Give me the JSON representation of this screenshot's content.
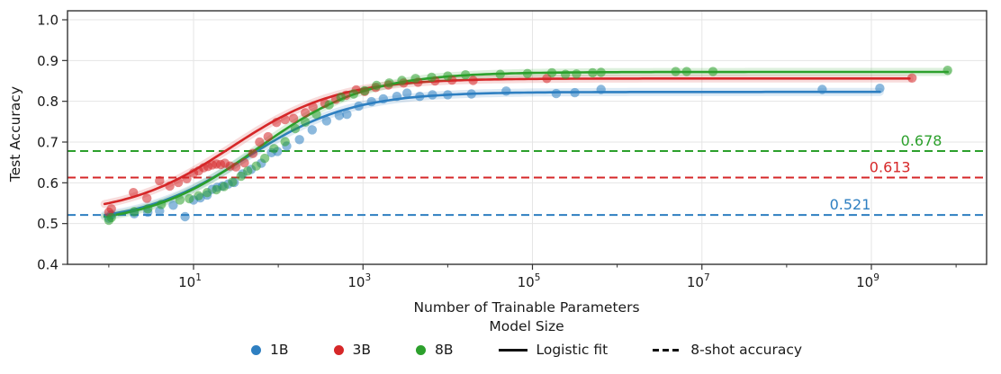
{
  "figure": {
    "xlabel": "Number of Trainable Parameters",
    "ylabel": "Test Accuracy"
  },
  "legend": {
    "title": "Model Size",
    "items": [
      {
        "label": "1B",
        "marker": "dot",
        "color": "#2e7fc1"
      },
      {
        "label": "3B",
        "marker": "dot",
        "color": "#d62728"
      },
      {
        "label": "8B",
        "marker": "dot",
        "color": "#2ca02c"
      },
      {
        "label": "Logistic fit",
        "marker": "solid-line",
        "color": "#111111"
      },
      {
        "label": "8-shot accuracy",
        "marker": "dashed-line",
        "color": "#111111"
      }
    ]
  },
  "chart_data": {
    "type": "scatter",
    "title": "",
    "xlabel": "Number of Trainable Parameters",
    "ylabel": "Test Accuracy",
    "x_scale": "log10",
    "xlim_log10": [
      -0.49,
      10.36
    ],
    "ylim": [
      0.4,
      1.022
    ],
    "y_ticks": [
      0.4,
      0.5,
      0.6,
      0.7,
      0.8,
      0.9,
      1.0
    ],
    "x_major_tick_exponents": [
      1,
      3,
      5,
      7,
      9
    ],
    "x_minor_tick_exponents": [
      0,
      2,
      4,
      6,
      8,
      10
    ],
    "grid": true,
    "legend_position": "bottom",
    "legend_title": "Model Size",
    "colors": {
      "grid": "#e5e5e5",
      "spine": "#333333",
      "text": "#1a1a1a"
    },
    "series": [
      {
        "name": "1B",
        "color": "#2e7fc1",
        "baseline_8shot": {
          "value": 0.521,
          "text": "0.521",
          "label_x_log10": 8.75
        },
        "logistic_fit": {
          "lower": 0.5,
          "upper": 0.823,
          "k": 1.6,
          "midpoint_log10": 1.62
        },
        "line_start_log10": -0.05,
        "line_end_log10": 9.1,
        "points_log10_accuracy": [
          [
            0.0,
            0.513
          ],
          [
            0.03,
            0.521
          ],
          [
            0.3,
            0.524
          ],
          [
            0.46,
            0.528
          ],
          [
            0.6,
            0.531
          ],
          [
            0.76,
            0.545
          ],
          [
            0.9,
            0.517
          ],
          [
            1.0,
            0.558
          ],
          [
            1.08,
            0.563
          ],
          [
            1.16,
            0.57
          ],
          [
            1.22,
            0.584
          ],
          [
            1.28,
            0.589
          ],
          [
            1.34,
            0.592
          ],
          [
            1.41,
            0.597
          ],
          [
            1.48,
            0.601
          ],
          [
            1.58,
            0.622
          ],
          [
            1.68,
            0.633
          ],
          [
            1.8,
            0.648
          ],
          [
            1.92,
            0.674
          ],
          [
            1.99,
            0.677
          ],
          [
            2.1,
            0.69
          ],
          [
            2.25,
            0.706
          ],
          [
            2.4,
            0.73
          ],
          [
            2.57,
            0.752
          ],
          [
            2.72,
            0.765
          ],
          [
            2.81,
            0.768
          ],
          [
            2.95,
            0.788
          ],
          [
            3.1,
            0.799
          ],
          [
            3.24,
            0.806
          ],
          [
            3.4,
            0.812
          ],
          [
            3.52,
            0.82
          ],
          [
            3.67,
            0.812
          ],
          [
            3.82,
            0.816
          ],
          [
            4.0,
            0.816
          ],
          [
            4.28,
            0.818
          ],
          [
            4.69,
            0.825
          ],
          [
            5.28,
            0.819
          ],
          [
            5.5,
            0.821
          ],
          [
            5.81,
            0.829
          ],
          [
            8.42,
            0.829
          ],
          [
            9.1,
            0.832
          ]
        ]
      },
      {
        "name": "3B",
        "color": "#d62728",
        "baseline_8shot": {
          "value": 0.613,
          "text": "0.613",
          "label_x_log10": 9.22
        },
        "logistic_fit": {
          "lower": 0.52,
          "upper": 0.856,
          "k": 1.6,
          "midpoint_log10": 1.45
        },
        "line_start_log10": -0.05,
        "line_end_log10": 9.48,
        "points_log10_accuracy": [
          [
            0.0,
            0.528
          ],
          [
            0.03,
            0.536
          ],
          [
            0.29,
            0.576
          ],
          [
            0.45,
            0.562
          ],
          [
            0.6,
            0.605
          ],
          [
            0.72,
            0.592
          ],
          [
            0.82,
            0.601
          ],
          [
            0.92,
            0.61
          ],
          [
            1.0,
            0.624
          ],
          [
            1.06,
            0.629
          ],
          [
            1.12,
            0.637
          ],
          [
            1.17,
            0.64
          ],
          [
            1.22,
            0.644
          ],
          [
            1.27,
            0.646
          ],
          [
            1.32,
            0.645
          ],
          [
            1.37,
            0.648
          ],
          [
            1.43,
            0.641
          ],
          [
            1.5,
            0.639
          ],
          [
            1.6,
            0.649
          ],
          [
            1.7,
            0.672
          ],
          [
            1.78,
            0.7
          ],
          [
            1.88,
            0.713
          ],
          [
            1.98,
            0.748
          ],
          [
            2.08,
            0.755
          ],
          [
            2.18,
            0.758
          ],
          [
            2.32,
            0.772
          ],
          [
            2.41,
            0.786
          ],
          [
            2.55,
            0.795
          ],
          [
            2.68,
            0.805
          ],
          [
            2.8,
            0.815
          ],
          [
            2.92,
            0.828
          ],
          [
            3.02,
            0.824
          ],
          [
            3.15,
            0.834
          ],
          [
            3.3,
            0.84
          ],
          [
            3.48,
            0.845
          ],
          [
            3.65,
            0.847
          ],
          [
            3.85,
            0.85
          ],
          [
            4.05,
            0.852
          ],
          [
            4.3,
            0.851
          ],
          [
            5.17,
            0.856
          ],
          [
            9.48,
            0.857
          ]
        ]
      },
      {
        "name": "8B",
        "color": "#2ca02c",
        "baseline_8shot": {
          "value": 0.678,
          "text": "0.678",
          "label_x_log10": 9.59
        },
        "logistic_fit": {
          "lower": 0.495,
          "upper": 0.872,
          "k": 1.55,
          "midpoint_log10": 1.75
        },
        "line_start_log10": -0.05,
        "line_end_log10": 9.9,
        "points_log10_accuracy": [
          [
            0.0,
            0.508
          ],
          [
            0.03,
            0.515
          ],
          [
            0.3,
            0.529
          ],
          [
            0.46,
            0.536
          ],
          [
            0.62,
            0.547
          ],
          [
            0.84,
            0.558
          ],
          [
            0.95,
            0.561
          ],
          [
            1.06,
            0.568
          ],
          [
            1.16,
            0.576
          ],
          [
            1.27,
            0.583
          ],
          [
            1.36,
            0.591
          ],
          [
            1.46,
            0.602
          ],
          [
            1.56,
            0.616
          ],
          [
            1.64,
            0.629
          ],
          [
            1.74,
            0.641
          ],
          [
            1.84,
            0.66
          ],
          [
            1.95,
            0.684
          ],
          [
            2.08,
            0.701
          ],
          [
            2.2,
            0.733
          ],
          [
            2.32,
            0.749
          ],
          [
            2.45,
            0.768
          ],
          [
            2.6,
            0.791
          ],
          [
            2.74,
            0.81
          ],
          [
            2.89,
            0.818
          ],
          [
            3.02,
            0.826
          ],
          [
            3.16,
            0.839
          ],
          [
            3.31,
            0.845
          ],
          [
            3.46,
            0.851
          ],
          [
            3.62,
            0.856
          ],
          [
            3.81,
            0.859
          ],
          [
            4.0,
            0.862
          ],
          [
            4.21,
            0.865
          ],
          [
            4.62,
            0.866
          ],
          [
            4.94,
            0.868
          ],
          [
            5.23,
            0.87
          ],
          [
            5.39,
            0.866
          ],
          [
            5.52,
            0.867
          ],
          [
            5.71,
            0.87
          ],
          [
            5.81,
            0.871
          ],
          [
            6.69,
            0.873
          ],
          [
            6.82,
            0.873
          ],
          [
            7.13,
            0.873
          ],
          [
            9.9,
            0.876
          ]
        ]
      }
    ]
  }
}
